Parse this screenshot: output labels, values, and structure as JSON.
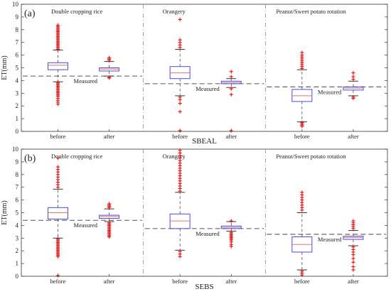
{
  "chart_data": [
    {
      "type": "box",
      "panel_label": "(a)",
      "xlabel": "SBEAL",
      "ylabel": "ET(mm)",
      "ylim": [
        0,
        10
      ],
      "yticks": [
        0,
        1,
        2,
        3,
        4,
        5,
        6,
        7,
        8,
        9,
        10
      ],
      "grid": false,
      "colors": {
        "box": "#4a4ae0",
        "median": "#e07070",
        "outlier": "#e01010",
        "whisker": "#333333",
        "measured": "#555555"
      },
      "groups": [
        {
          "name": "Double cropping rice",
          "measured": 4.35,
          "measured_label": "Measured",
          "boxes": [
            {
              "label": "before",
              "whisker_low": 3.9,
              "q1": 4.85,
              "median": 5.2,
              "q3": 5.4,
              "whisker_high": 6.4,
              "outliers_high": [
                6.45,
                6.55,
                6.65,
                6.75,
                6.85,
                6.95,
                7.05,
                7.15,
                7.25,
                7.35,
                7.45,
                7.55,
                7.65,
                7.75,
                7.85,
                7.95,
                8.05,
                8.15,
                8.25,
                8.35
              ],
              "outliers_low": [
                3.85,
                3.75,
                3.65,
                3.55,
                3.45,
                3.35,
                3.25,
                3.15,
                3.05,
                2.95,
                2.85,
                2.75,
                2.6,
                2.45,
                2.3,
                2.15
              ]
            },
            {
              "label": "after",
              "whisker_low": 4.35,
              "q1": 4.75,
              "median": 4.9,
              "q3": 5.0,
              "whisker_high": 5.5,
              "outliers_high": [
                5.6,
                5.7,
                5.8
              ],
              "outliers_low": [
                4.25,
                4.2
              ]
            }
          ]
        },
        {
          "name": "Orangery",
          "measured": 3.75,
          "measured_label": "Measured",
          "boxes": [
            {
              "label": "before",
              "whisker_low": 2.8,
              "q1": 4.15,
              "median": 4.6,
              "q3": 5.1,
              "whisker_high": 6.45,
              "outliers_high": [
                6.6,
                6.8,
                7.0,
                7.2,
                8.8
              ],
              "outliers_low": [
                2.7,
                2.5,
                2.2,
                1.55,
                0.05
              ]
            },
            {
              "label": "after",
              "whisker_low": 3.45,
              "q1": 3.75,
              "median": 3.85,
              "q3": 3.95,
              "whisker_high": 4.15,
              "outliers_high": [
                4.3,
                4.7
              ],
              "outliers_low": [
                3.35,
                2.9,
                0.05
              ]
            }
          ]
        },
        {
          "name": "Peanut/Sweet potato rotation",
          "measured": 3.5,
          "measured_label": "Measured",
          "boxes": [
            {
              "label": "before",
              "whisker_low": 0.75,
              "q1": 2.35,
              "median": 2.8,
              "q3": 3.3,
              "whisker_high": 4.85,
              "outliers_high": [
                4.95,
                5.1,
                5.25,
                5.4,
                5.55,
                5.7,
                5.85,
                6.0,
                6.2
              ],
              "outliers_low": [
                0.7,
                0.6,
                0.5,
                0.4
              ]
            },
            {
              "label": "after",
              "whisker_low": 2.8,
              "q1": 3.25,
              "median": 3.4,
              "q3": 3.5,
              "whisker_high": 3.95,
              "outliers_high": [
                4.1,
                4.3,
                4.6
              ],
              "outliers_low": [
                2.7,
                2.6
              ]
            }
          ]
        }
      ]
    },
    {
      "type": "box",
      "panel_label": "(b)",
      "xlabel": "SEBS",
      "ylabel": "ET(mm)",
      "ylim": [
        0,
        10
      ],
      "yticks": [
        0,
        1,
        2,
        3,
        4,
        5,
        6,
        7,
        8,
        9,
        10
      ],
      "grid": false,
      "colors": {
        "box": "#4a4ae0",
        "median": "#e07070",
        "outlier": "#e01010",
        "whisker": "#333333",
        "measured": "#555555"
      },
      "groups": [
        {
          "name": "Double cropping rice",
          "measured": 4.4,
          "measured_label": "Measured",
          "boxes": [
            {
              "label": "before",
              "whisker_low": 3.0,
              "q1": 4.5,
              "median": 5.0,
              "q3": 5.4,
              "whisker_high": 6.85,
              "outliers_high": [
                7.0,
                7.2,
                7.4,
                7.6,
                7.8,
                8.0,
                8.2,
                8.4,
                8.6,
                9.3
              ],
              "outliers_low": [
                2.95,
                2.85,
                2.75,
                2.65,
                2.55,
                2.45,
                2.35,
                2.25,
                2.15,
                2.05,
                1.95,
                1.85,
                1.75,
                1.65,
                1.55,
                0.05
              ]
            },
            {
              "label": "after",
              "whisker_low": 4.3,
              "q1": 4.55,
              "median": 4.7,
              "q3": 4.8,
              "whisker_high": 5.3,
              "outliers_high": [
                5.4,
                5.5,
                5.6,
                5.7
              ],
              "outliers_low": [
                4.2,
                4.1,
                4.0,
                3.9,
                3.8,
                3.7,
                3.6,
                3.5,
                3.4,
                3.3,
                3.2,
                3.1
              ]
            }
          ]
        },
        {
          "name": "Orangery",
          "measured": 3.75,
          "measured_label": "Measured",
          "boxes": [
            {
              "label": "before",
              "whisker_low": 2.05,
              "q1": 3.75,
              "median": 4.35,
              "q3": 4.9,
              "whisker_high": 6.6,
              "outliers_high": [
                6.7,
                6.9,
                7.1,
                7.3,
                7.5,
                7.7,
                7.9,
                8.1,
                8.3,
                8.5,
                8.7,
                8.9,
                9.1,
                9.3,
                9.5,
                9.7,
                9.9
              ],
              "outliers_low": [
                1.95,
                1.75,
                1.55
              ]
            },
            {
              "label": "after",
              "whisker_low": 3.55,
              "q1": 3.75,
              "median": 3.85,
              "q3": 3.95,
              "whisker_high": 4.3,
              "outliers_high": [
                4.35
              ],
              "outliers_low": [
                3.45,
                3.35,
                3.25,
                3.15,
                3.05,
                2.95,
                2.85,
                2.7,
                2.5,
                2.35
              ]
            }
          ]
        },
        {
          "name": "Peanut/Sweet potato rotation",
          "measured": 3.3,
          "measured_label": "Measured",
          "boxes": [
            {
              "label": "before",
              "whisker_low": 0.5,
              "q1": 1.9,
              "median": 2.5,
              "q3": 3.1,
              "whisker_high": 5.0,
              "outliers_high": [
                5.2,
                5.4,
                5.6,
                5.8,
                6.0,
                6.2,
                6.4,
                6.6
              ],
              "outliers_low": [
                0.4,
                0.25,
                0.1
              ]
            },
            {
              "label": "after",
              "whisker_low": 2.4,
              "q1": 2.9,
              "median": 3.05,
              "q3": 3.15,
              "whisker_high": 3.6,
              "outliers_high": [
                3.75,
                3.9,
                4.05,
                4.2,
                4.35
              ],
              "outliers_low": [
                2.3,
                2.1,
                1.9,
                1.7,
                1.4,
                1.1,
                0.75,
                0.5
              ]
            }
          ]
        }
      ]
    }
  ]
}
